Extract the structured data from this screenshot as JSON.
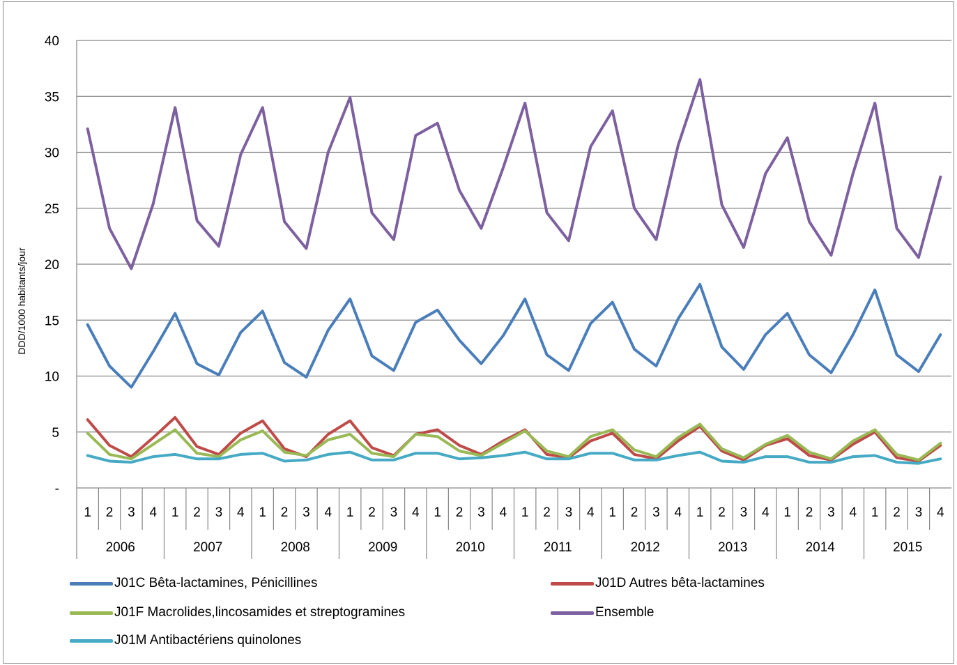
{
  "chart_data": {
    "type": "line",
    "title": "",
    "xlabel": "",
    "ylabel": "DDD/1000 habitants/jour",
    "ylim": [
      0,
      40
    ],
    "y_ticks": [
      {
        "value": 0,
        "label": "-"
      },
      {
        "value": 5,
        "label": "5"
      },
      {
        "value": 10,
        "label": "10"
      },
      {
        "value": 15,
        "label": "15"
      },
      {
        "value": 20,
        "label": "20"
      },
      {
        "value": 25,
        "label": "25"
      },
      {
        "value": 30,
        "label": "30"
      },
      {
        "value": 35,
        "label": "35"
      },
      {
        "value": 40,
        "label": "40"
      }
    ],
    "grid": true,
    "legend_position": "bottom",
    "years": [
      "2006",
      "2007",
      "2008",
      "2009",
      "2010",
      "2011",
      "2012",
      "2013",
      "2014",
      "2015"
    ],
    "quarters": [
      "1",
      "2",
      "3",
      "4"
    ],
    "series": [
      {
        "name": "J01C Bêta-lactamines, Pénicillines",
        "color": "#4a7ebb",
        "values": [
          14.6,
          10.9,
          9.0,
          12.2,
          15.6,
          11.1,
          10.1,
          13.9,
          15.8,
          11.2,
          9.9,
          14.1,
          16.9,
          11.8,
          10.5,
          14.8,
          15.9,
          13.2,
          11.1,
          13.6,
          16.9,
          11.9,
          10.5,
          14.7,
          16.6,
          12.4,
          10.9,
          15.1,
          18.2,
          12.6,
          10.6,
          13.7,
          15.6,
          11.9,
          10.3,
          13.7,
          17.7,
          11.9,
          10.4,
          13.7
        ]
      },
      {
        "name": "J01D Autres bêta-lactamines",
        "color": "#be4b48",
        "values": [
          6.1,
          3.8,
          2.8,
          4.5,
          6.3,
          3.7,
          3.0,
          4.9,
          6.0,
          3.5,
          2.8,
          4.8,
          6.0,
          3.6,
          2.9,
          4.8,
          5.2,
          3.8,
          3.0,
          4.2,
          5.2,
          3.0,
          2.7,
          4.2,
          4.9,
          3.0,
          2.6,
          4.2,
          5.5,
          3.3,
          2.5,
          3.8,
          4.4,
          2.9,
          2.5,
          3.9,
          5.0,
          2.7,
          2.4,
          3.8
        ]
      },
      {
        "name": "J01F Macrolides,lincosamides et streptogramines",
        "color": "#98b954",
        "values": [
          4.9,
          3.0,
          2.6,
          3.9,
          5.2,
          3.1,
          2.8,
          4.3,
          5.1,
          3.2,
          2.9,
          4.3,
          4.8,
          3.1,
          2.8,
          4.8,
          4.6,
          3.3,
          2.9,
          4.0,
          5.1,
          3.3,
          2.8,
          4.6,
          5.2,
          3.4,
          2.8,
          4.5,
          5.7,
          3.5,
          2.7,
          3.9,
          4.7,
          3.2,
          2.6,
          4.2,
          5.2,
          3.0,
          2.5,
          4.0
        ]
      },
      {
        "name": "Ensemble",
        "color": "#7d60a0",
        "values": [
          32.1,
          23.2,
          19.6,
          25.4,
          34.0,
          23.9,
          21.6,
          29.8,
          34.0,
          23.8,
          21.4,
          30.0,
          34.9,
          24.6,
          22.2,
          31.5,
          32.6,
          26.6,
          23.2,
          28.6,
          34.4,
          24.6,
          22.1,
          30.5,
          33.7,
          25.0,
          22.2,
          30.6,
          36.5,
          25.3,
          21.5,
          28.1,
          31.3,
          23.8,
          20.8,
          28.1,
          34.4,
          23.2,
          20.6,
          27.8
        ]
      },
      {
        "name": "J01M Antibactériens quinolones",
        "color": "#46aac5",
        "values": [
          2.9,
          2.4,
          2.3,
          2.8,
          3.0,
          2.6,
          2.6,
          3.0,
          3.1,
          2.4,
          2.5,
          3.0,
          3.2,
          2.5,
          2.5,
          3.1,
          3.1,
          2.6,
          2.7,
          2.9,
          3.2,
          2.6,
          2.6,
          3.1,
          3.1,
          2.5,
          2.5,
          2.9,
          3.2,
          2.4,
          2.3,
          2.8,
          2.8,
          2.3,
          2.3,
          2.8,
          2.9,
          2.3,
          2.2,
          2.6
        ]
      }
    ]
  }
}
